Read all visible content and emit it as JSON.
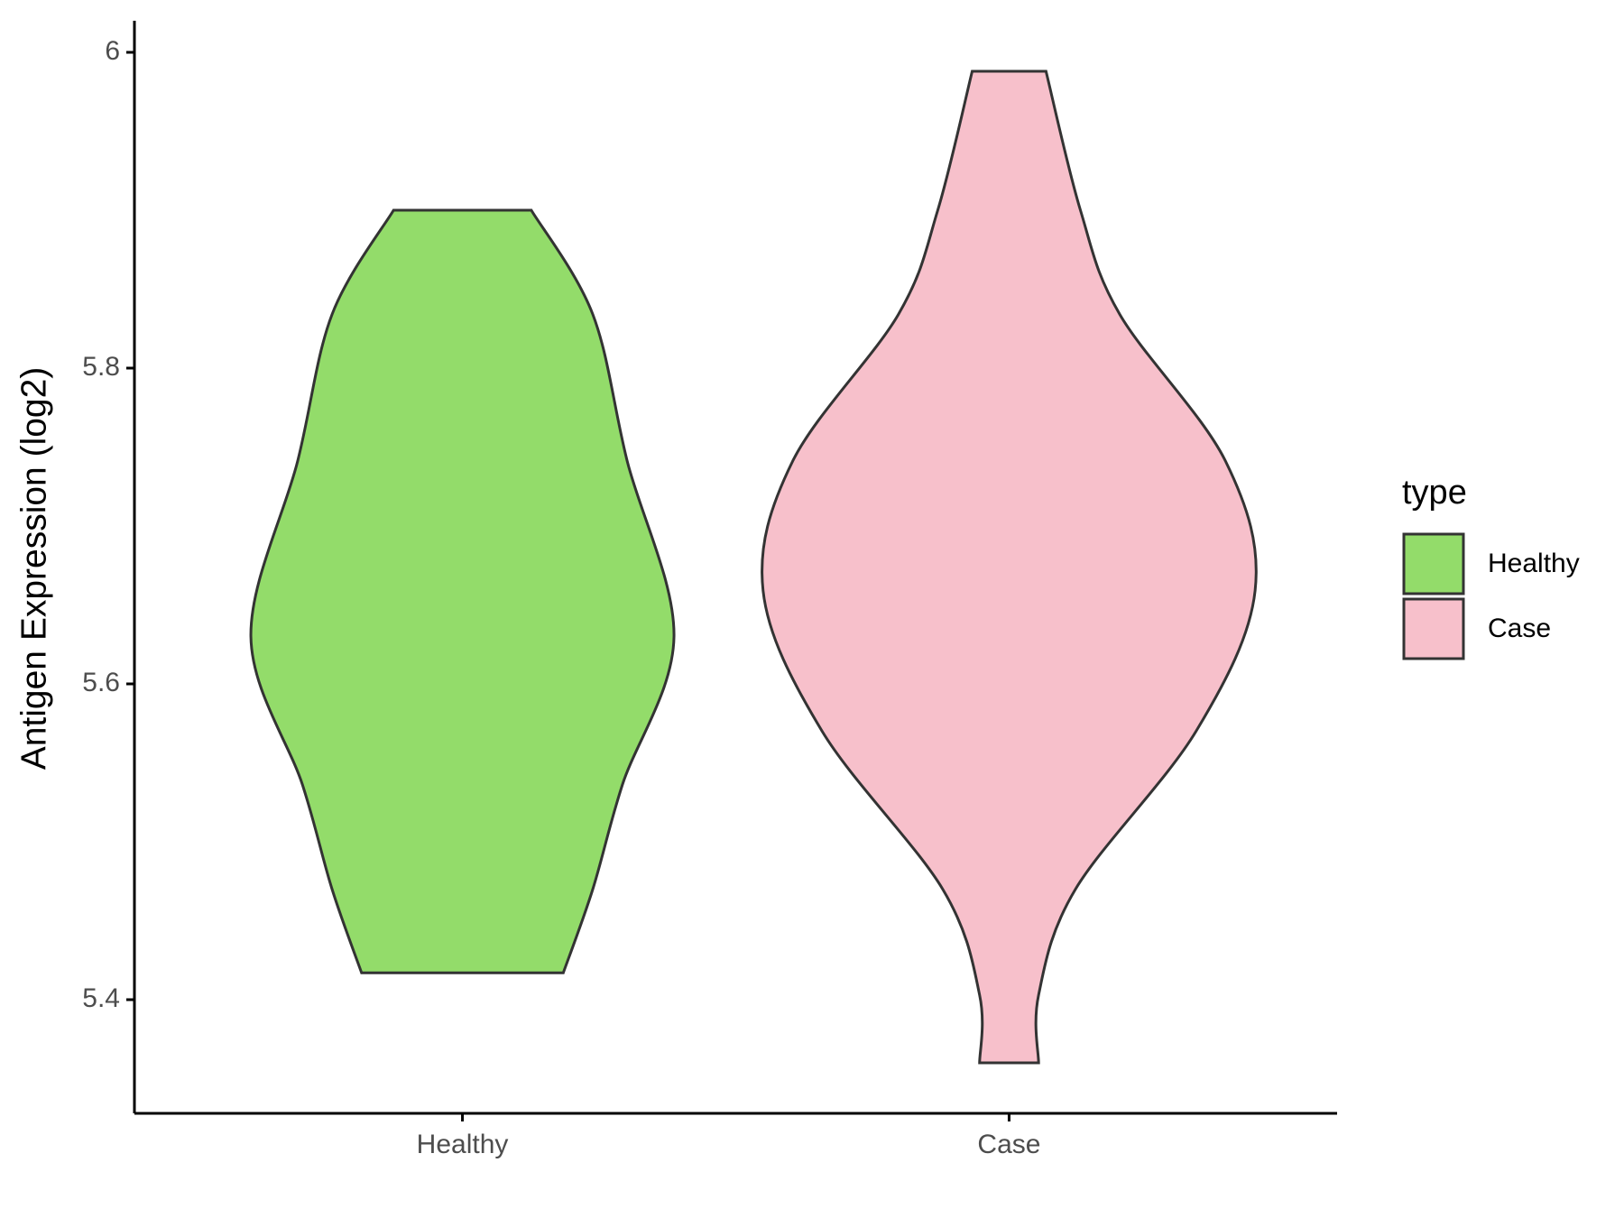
{
  "chart_data": {
    "type": "violin",
    "y_label": "Antigen Expression (log2)",
    "categories": [
      "Healthy",
      "Case"
    ],
    "series": [
      {
        "name": "Healthy",
        "color": "#93dc6a",
        "y": [
          5.417,
          5.47,
          5.536,
          5.63,
          5.741,
          5.834,
          5.9
        ],
        "density": [
          0.41,
          0.53,
          0.65,
          0.86,
          0.67,
          0.53,
          0.28
        ]
      },
      {
        "name": "Case",
        "color": "#f7c0cb",
        "y": [
          5.36,
          5.403,
          5.47,
          5.57,
          5.659,
          5.741,
          5.834,
          5.9,
          5.988
        ],
        "density": [
          0.12,
          0.12,
          0.27,
          0.76,
          1.0,
          0.88,
          0.45,
          0.29,
          0.15
        ]
      }
    ],
    "ylim": [
      5.328,
      6.02
    ],
    "yticks": [
      5.4,
      5.6,
      5.8,
      6.0
    ],
    "legend_title": "type",
    "legend": "right",
    "grid": false
  }
}
